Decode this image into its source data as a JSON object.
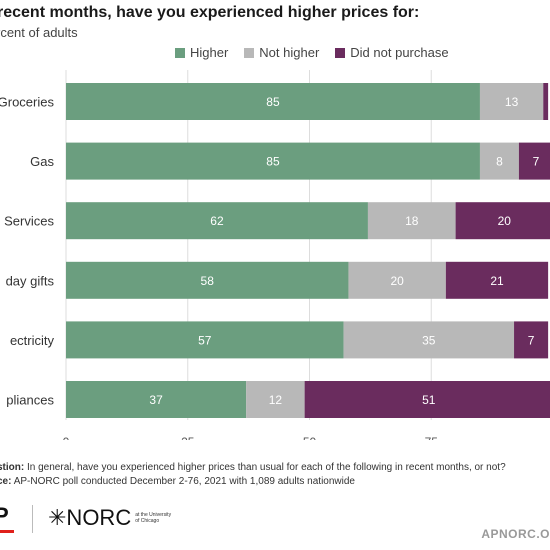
{
  "title": "recent months, have you experienced higher prices for:",
  "subtitle": "rcent of adults",
  "colors": {
    "higher": "#6b9e7f",
    "not_higher": "#b8b8b8",
    "did_not_purchase": "#6a2c5e",
    "grid": "#dddddd"
  },
  "legend": [
    {
      "label": "Higher",
      "color": "#6b9e7f"
    },
    {
      "label": "Not higher",
      "color": "#b8b8b8"
    },
    {
      "label": "Did not purchase",
      "color": "#6a2c5e"
    }
  ],
  "chart_data": {
    "type": "bar",
    "orientation": "horizontal",
    "stacked": true,
    "categories": [
      "Groceries",
      "Gas",
      "Services",
      "day gifts",
      "ectricity",
      "pliances"
    ],
    "series": [
      {
        "name": "Higher",
        "values": [
          85,
          85,
          62,
          58,
          57,
          37
        ]
      },
      {
        "name": "Not higher",
        "values": [
          13,
          8,
          18,
          20,
          35,
          12
        ]
      },
      {
        "name": "Did not purchase",
        "values": [
          1,
          7,
          20,
          21,
          7,
          51
        ]
      }
    ],
    "data_labels": [
      [
        "85",
        "13",
        ""
      ],
      [
        "85",
        "8",
        "7"
      ],
      [
        "62",
        "18",
        "20"
      ],
      [
        "58",
        "20",
        "21"
      ],
      [
        "57",
        "35",
        "7"
      ],
      [
        "37",
        "12",
        "51"
      ]
    ],
    "xlim": [
      0,
      100
    ],
    "xticks": [
      "0",
      "25",
      "50",
      "75",
      "1"
    ],
    "grid": true,
    "legend_position": "top"
  },
  "footnote": {
    "question_label": "stion:",
    "question_text": "In general, have you experienced higher prices than usual for each of the following in recent months, or not?",
    "source_label": "ce:",
    "source_text": "AP-NORC poll conducted December 2-76, 2021 with 1,089 adults nationwide"
  },
  "logos": {
    "ap": "P",
    "norc": "✳NORC",
    "norc_sub": "at the University of Chicago"
  },
  "site": "APNORC.O"
}
